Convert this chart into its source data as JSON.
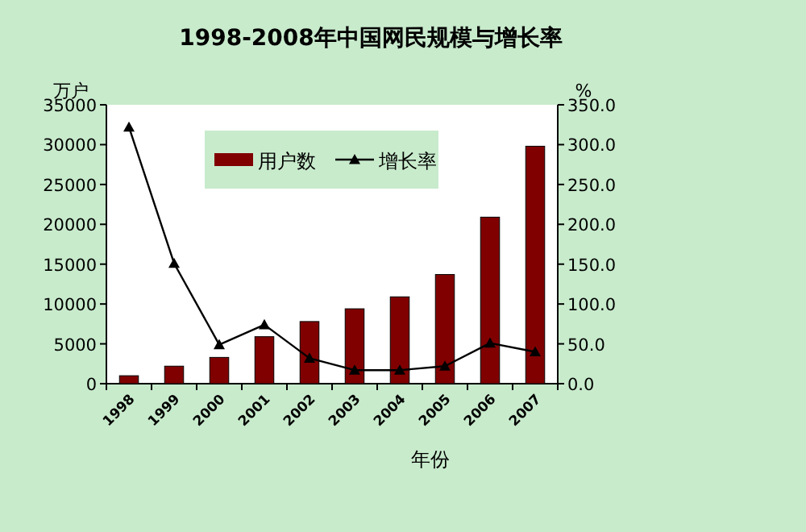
{
  "chart_data": {
    "type": "bar",
    "title": "1998-2008年中国网民规模与增长率",
    "xlabel": "年份",
    "ylabel": "万户",
    "y2label": "%",
    "categories": [
      "1998",
      "1999",
      "2000",
      "2001",
      "2002",
      "2003",
      "2004",
      "2005",
      "2006",
      "2007"
    ],
    "series": [
      {
        "name": "用户数",
        "color": "#800000",
        "values": [
          1000,
          2200,
          3300,
          5900,
          7800,
          9400,
          10900,
          13700,
          20900,
          29800
        ]
      },
      {
        "name": "增长率",
        "type": "line",
        "axis": "y2",
        "color": "#000000",
        "marker": "triangle",
        "line_style": "solid",
        "values": [
          322,
          151,
          49,
          74,
          32,
          17,
          17,
          22,
          51,
          40
        ]
      }
    ],
    "ylim": [
      0,
      35000
    ],
    "yticks": [
      0,
      5000,
      10000,
      15000,
      20000,
      25000,
      30000,
      35000
    ],
    "y2lim": [
      0,
      350
    ],
    "y2ticks": [
      {
        "value": 0,
        "label": "0.0"
      },
      {
        "value": 50,
        "label": "50.0"
      },
      {
        "value": 100,
        "label": "100.0"
      },
      {
        "value": 150,
        "label": "150.0"
      },
      {
        "value": 200,
        "label": "200.0"
      },
      {
        "value": 250,
        "label": "250.0"
      },
      {
        "value": 300,
        "label": "300.0"
      },
      {
        "value": 350,
        "label": "350.0"
      }
    ],
    "grid": false,
    "legend": "top"
  }
}
